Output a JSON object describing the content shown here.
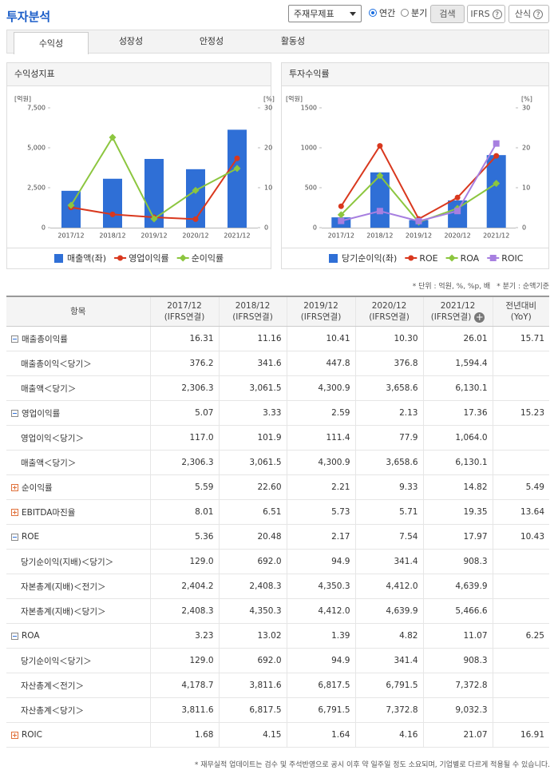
{
  "header": {
    "title": "투자분석",
    "select": "주재무제표",
    "radios": [
      "연간",
      "분기"
    ],
    "search": "검색",
    "buttons": [
      "IFRS",
      "산식"
    ]
  },
  "tabs": [
    "수익성",
    "성장성",
    "안정성",
    "활동성"
  ],
  "chart_data": [
    {
      "type": "combo",
      "title": "수익성지표",
      "y_label": "[억원]",
      "y2_label": "[%]",
      "categories": [
        "2017/12",
        "2018/12",
        "2019/12",
        "2020/12",
        "2021/12"
      ],
      "ylim": [
        0,
        7500
      ],
      "yticks": [
        0,
        {
          "value": 2500,
          "label": "2,500"
        },
        {
          "value": 5000,
          "label": "5,000"
        },
        {
          "value": 7500,
          "label": "7,500"
        }
      ],
      "y2lim": [
        0,
        30
      ],
      "y2ticks": [
        0,
        10,
        20,
        30
      ],
      "grid": false,
      "series": [
        {
          "name": "매출액(좌)",
          "kind": "bar",
          "color": "#2f6fd6",
          "values": [
            2306.3,
            3061.5,
            4300.9,
            3658.6,
            6130.1
          ]
        },
        {
          "name": "영업이익률",
          "kind": "line",
          "marker": "circle",
          "axis": "y2",
          "color": "#d9381e",
          "values": [
            5.07,
            3.33,
            2.59,
            2.13,
            17.36
          ]
        },
        {
          "name": "순이익률",
          "kind": "line",
          "marker": "diamond",
          "axis": "y2",
          "color": "#8cc63f",
          "values": [
            5.59,
            22.6,
            2.21,
            9.33,
            14.82
          ]
        }
      ]
    },
    {
      "type": "combo",
      "title": "투자수익률",
      "y_label": "[억원]",
      "y2_label": "[%]",
      "categories": [
        "2017/12",
        "2018/12",
        "2019/12",
        "2020/12",
        "2021/12"
      ],
      "ylim": [
        0,
        1500
      ],
      "yticks": [
        0,
        500,
        1000,
        1500
      ],
      "y2lim": [
        0,
        30
      ],
      "y2ticks": [
        0,
        10,
        20,
        30
      ],
      "grid": false,
      "series": [
        {
          "name": "당기순이익(좌)",
          "kind": "bar",
          "color": "#2f6fd6",
          "values": [
            129.0,
            692.0,
            94.9,
            341.4,
            908.3
          ]
        },
        {
          "name": "ROE",
          "kind": "line",
          "marker": "circle",
          "axis": "y2",
          "color": "#d9381e",
          "values": [
            5.36,
            20.48,
            2.17,
            7.54,
            17.97
          ]
        },
        {
          "name": "ROA",
          "kind": "line",
          "marker": "diamond",
          "axis": "y2",
          "color": "#8cc63f",
          "values": [
            3.23,
            13.02,
            1.39,
            4.82,
            11.07
          ]
        },
        {
          "name": "ROIC",
          "kind": "line",
          "marker": "square",
          "axis": "y2",
          "color": "#a77fe0",
          "values": [
            1.68,
            4.15,
            1.64,
            4.16,
            21.07
          ]
        }
      ]
    }
  ],
  "notes": [
    "* 단위 : 억원, %, %p, 배",
    "* 분기 : 순액기준"
  ],
  "table": {
    "columns": [
      [
        "항목"
      ],
      [
        "2017/12",
        "(IFRS연결)"
      ],
      [
        "2018/12",
        "(IFRS연결)"
      ],
      [
        "2019/12",
        "(IFRS연결)"
      ],
      [
        "2020/12",
        "(IFRS연결)"
      ],
      [
        "2021/12",
        "(IFRS연결)"
      ],
      [
        "전년대비",
        "(YoY)"
      ]
    ],
    "groups": [
      {
        "expanded": true,
        "cells": [
          "매출총이익률",
          "16.31",
          "11.16",
          "10.41",
          "10.30",
          "26.01",
          "15.71"
        ],
        "children": [
          [
            "매출총이익＜당기＞",
            "376.2",
            "341.6",
            "447.8",
            "376.8",
            "1,594.4",
            null
          ],
          [
            "매출액＜당기＞",
            "2,306.3",
            "3,061.5",
            "4,300.9",
            "3,658.6",
            "6,130.1",
            null
          ]
        ]
      },
      {
        "expanded": true,
        "cells": [
          "영업이익률",
          "5.07",
          "3.33",
          "2.59",
          "2.13",
          "17.36",
          "15.23"
        ],
        "children": [
          [
            "영업이익＜당기＞",
            "117.0",
            "101.9",
            "111.4",
            "77.9",
            "1,064.0",
            null
          ],
          [
            "매출액＜당기＞",
            "2,306.3",
            "3,061.5",
            "4,300.9",
            "3,658.6",
            "6,130.1",
            null
          ]
        ]
      },
      {
        "expanded": false,
        "cells": [
          "순이익률",
          "5.59",
          "22.60",
          "2.21",
          "9.33",
          "14.82",
          "5.49"
        ],
        "children": []
      },
      {
        "expanded": false,
        "cells": [
          "EBITDA마진율",
          "8.01",
          "6.51",
          "5.73",
          "5.71",
          "19.35",
          "13.64"
        ],
        "children": []
      },
      {
        "expanded": true,
        "cells": [
          "ROE",
          "5.36",
          "20.48",
          "2.17",
          "7.54",
          "17.97",
          "10.43"
        ],
        "children": [
          [
            "당기순이익(지배)＜당기＞",
            "129.0",
            "692.0",
            "94.9",
            "341.4",
            "908.3",
            null
          ],
          [
            "자본총계(지배)＜전기＞",
            "2,404.2",
            "2,408.3",
            "4,350.3",
            "4,412.0",
            "4,639.9",
            null
          ],
          [
            "자본총계(지배)＜당기＞",
            "2,408.3",
            "4,350.3",
            "4,412.0",
            "4,639.9",
            "5,466.6",
            null
          ]
        ]
      },
      {
        "expanded": true,
        "cells": [
          "ROA",
          "3.23",
          "13.02",
          "1.39",
          "4.82",
          "11.07",
          "6.25"
        ],
        "children": [
          [
            "당기순이익＜당기＞",
            "129.0",
            "692.0",
            "94.9",
            "341.4",
            "908.3",
            null
          ],
          [
            "자산총계＜전기＞",
            "4,178.7",
            "3,811.6",
            "6,817.5",
            "6,791.5",
            "7,372.8",
            null
          ],
          [
            "자산총계＜당기＞",
            "3,811.6",
            "6,817.5",
            "6,791.5",
            "7,372.8",
            "9,032.3",
            null
          ]
        ]
      },
      {
        "expanded": false,
        "cells": [
          "ROIC",
          "1.68",
          "4.15",
          "1.64",
          "4.16",
          "21.07",
          "16.91"
        ],
        "children": []
      }
    ]
  },
  "footnote": "* 재무실적 업데이트는 검수 및 주석반영으로 공시 이후 약 일주일 정도 소요되며, 기업별로 다르게 적용될 수 있습니다."
}
